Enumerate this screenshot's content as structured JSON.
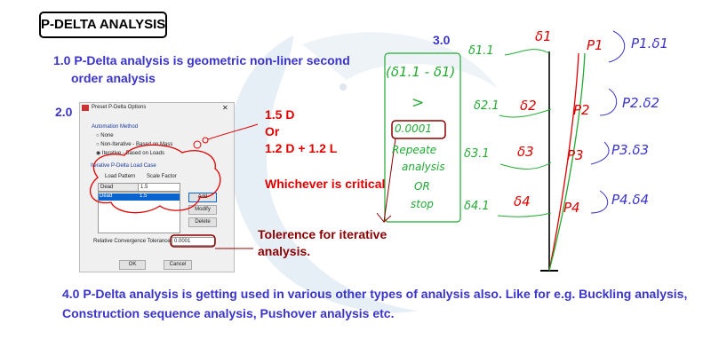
{
  "title": "P-DELTA ANALYSIS",
  "point1": {
    "line1": "1.0 P-Delta analysis is geometric non-liner second",
    "line2": "order analysis"
  },
  "point2": {
    "label": "2.0"
  },
  "dialog": {
    "title": "Preset P-Delta Options",
    "close": "✕",
    "automation_method": "Automation Method",
    "options": [
      "None",
      "Non-Iterative - Based on Mass",
      "Iterative - Based on Loads"
    ],
    "selected_option": 2,
    "load_case_group": "Iterative P-Delta Load Case",
    "col_load_pattern": "Load Pattern",
    "col_scale_factor": "Scale Factor",
    "load_pattern_value": "Dead",
    "scale_factor_value": "1.5",
    "rows": [
      {
        "pattern": "Dead",
        "factor": "1.5"
      }
    ],
    "add": "Add",
    "modify": "Modify",
    "delete": "Delete",
    "tolerance_label": "Relative Convergence Tolerance",
    "tolerance_value": "0.0001",
    "ok": "OK",
    "cancel": "Cancel"
  },
  "annotations": {
    "combo1": "1.5 D",
    "or": "Or",
    "combo2": "1.2 D + 1.2 L",
    "critical": "Whichever is critical",
    "tolerance_line1": "Tolerence for iterative",
    "tolerance_line2": "analysis."
  },
  "point3": {
    "label": "3.0",
    "check": [
      "(δ1.1 - δ1)",
      ">",
      "0.0001",
      "Repeate",
      "analysis",
      "OR",
      "stop"
    ],
    "new_deflections": [
      "δ1.1",
      "δ2.1",
      "δ3.1",
      "δ4.1"
    ],
    "deflections": [
      "δ1",
      "δ2",
      "δ3",
      "δ4"
    ],
    "loads": [
      "P1",
      "P2",
      "P3",
      "P4"
    ],
    "moments": [
      "P1.δ1",
      "P2.δ2",
      "P3.δ3",
      "P4.δ4"
    ]
  },
  "point4": {
    "line1": "4.0 P-Delta analysis is getting used in various other types of analysis also. Like for e.g. Buckling analysis,",
    "line2": "Construction sequence analysis, Pushover analysis etc."
  },
  "colors": {
    "blue": "#3a35c8",
    "red": "#e00000",
    "dark_red": "#8b0000",
    "green": "#22aa33"
  }
}
